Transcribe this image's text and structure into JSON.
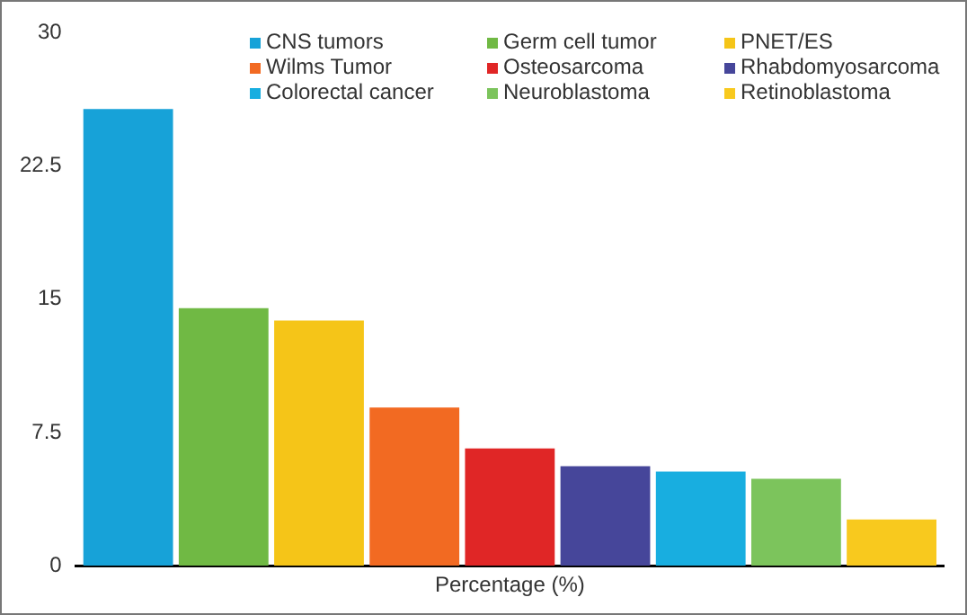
{
  "chart_data": {
    "type": "bar",
    "xlabel": "Percentage (%)",
    "categories": [
      null
    ],
    "series": [
      {
        "name": "CNS tumors",
        "color": "#17a2d8",
        "values": [
          25.7
        ]
      },
      {
        "name": "Germ cell tumor",
        "color": "#70b944",
        "values": [
          14.5
        ]
      },
      {
        "name": "PNET/ES",
        "color": "#f5c518",
        "values": [
          13.8
        ]
      },
      {
        "name": "Wilms Tumor",
        "color": "#f26a22",
        "values": [
          8.9
        ]
      },
      {
        "name": "Osteosarcoma",
        "color": "#e02626",
        "values": [
          6.6
        ]
      },
      {
        "name": "Rhabdomyosarcoma",
        "color": "#46469a",
        "values": [
          5.6
        ]
      },
      {
        "name": "Colorectal cancer",
        "color": "#18aee0",
        "values": [
          5.3
        ]
      },
      {
        "name": "Neuroblastoma",
        "color": "#7cc45c",
        "values": [
          4.9
        ]
      },
      {
        "name": "Retinoblastoma",
        "color": "#f8c91e",
        "values": [
          2.6
        ]
      }
    ],
    "ylim": [
      0,
      30
    ],
    "yticks": [
      0,
      {
        "value": 7.5,
        "label": "7.5"
      },
      15,
      {
        "value": 22.5,
        "label": "22.5"
      },
      30
    ],
    "grid": false,
    "legend": "top right"
  }
}
